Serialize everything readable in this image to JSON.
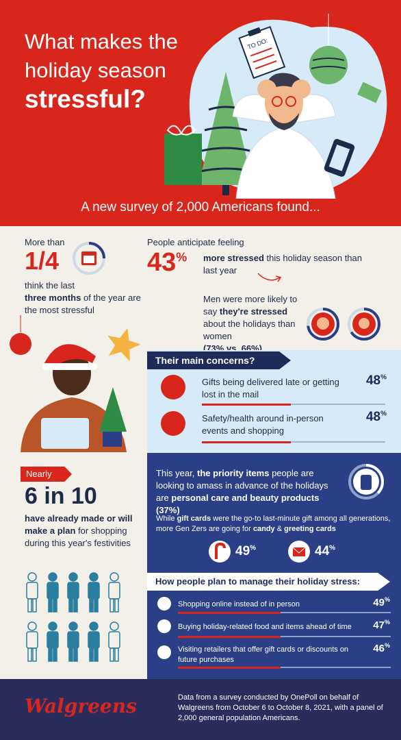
{
  "hero": {
    "title_line1": "What makes the",
    "title_line2": "holiday season",
    "title_bold": "stressful?",
    "subtitle": "A new survey of 2,000 Americans found...",
    "todo_label": "TO DO:"
  },
  "stat_quarter": {
    "lead": "More than",
    "value": "1/4",
    "text1": "think the last",
    "text_bold": "three months",
    "text2": "of the year are the most stressful"
  },
  "stat_43": {
    "lead": "People anticipate feeling",
    "value": "43",
    "unit": "%",
    "text_bold": "more stressed",
    "text": "this holiday season than last year"
  },
  "stat_men": {
    "text1": "Men were more likely to say",
    "text_bold": "they're stressed",
    "text2": "about the holidays than women",
    "compare": "(73% vs. 66%)",
    "men_pct": 73,
    "women_pct": 66
  },
  "concerns": {
    "title": "Their main concerns?",
    "items": [
      {
        "text": "Gifts being delivered late or getting lost in the mail",
        "pct": "48",
        "unit": "%",
        "icon": "package-clock-icon"
      },
      {
        "text": "Safety/health around in-person events and shopping",
        "pct": "48",
        "unit": "%",
        "icon": "people-health-icon"
      }
    ]
  },
  "plan": {
    "tag": "Nearly",
    "value": "6 in 10",
    "text_bold": "have already made or will make a plan",
    "text": "for shopping during this year's festivities",
    "filled_of_10": 6
  },
  "priority": {
    "text1": "This year,",
    "text_bold1": "the priority items",
    "text2": "people are looking to amass in advance of the holidays are",
    "text_bold2": "personal care and beauty products (37%)"
  },
  "gift_cards": {
    "text1": "While",
    "text_bold1": "gift cards",
    "text2": "were the go-to last-minute gift among all generations, more Gen Zers are going for",
    "text_bold2": "candy",
    "text3": "&",
    "text_bold3": "greeting cards",
    "candy_pct": "49",
    "cards_pct": "44",
    "unit": "%"
  },
  "manage": {
    "title": "How people plan to manage their holiday stress:",
    "items": [
      {
        "text": "Shopping online instead of in person",
        "pct": "49",
        "unit": "%"
      },
      {
        "text": "Buying holiday-related food and items ahead of time",
        "pct": "47",
        "unit": "%"
      },
      {
        "text": "Visiting retailers that offer gift cards or discounts on future purchases",
        "pct": "46",
        "unit": "%"
      }
    ]
  },
  "footer": {
    "logo": "Walgreens",
    "text": "Data from a survey conducted by OnePoll on behalf of Walgreens from October 6 to October 8, 2021, with a panel of 2,000 general population Americans."
  },
  "colors": {
    "red": "#d9261c",
    "navy": "#1e2a5a",
    "blue": "#2a3f86",
    "light_blue": "#d6ebf7",
    "cream": "#f3f0ea"
  }
}
